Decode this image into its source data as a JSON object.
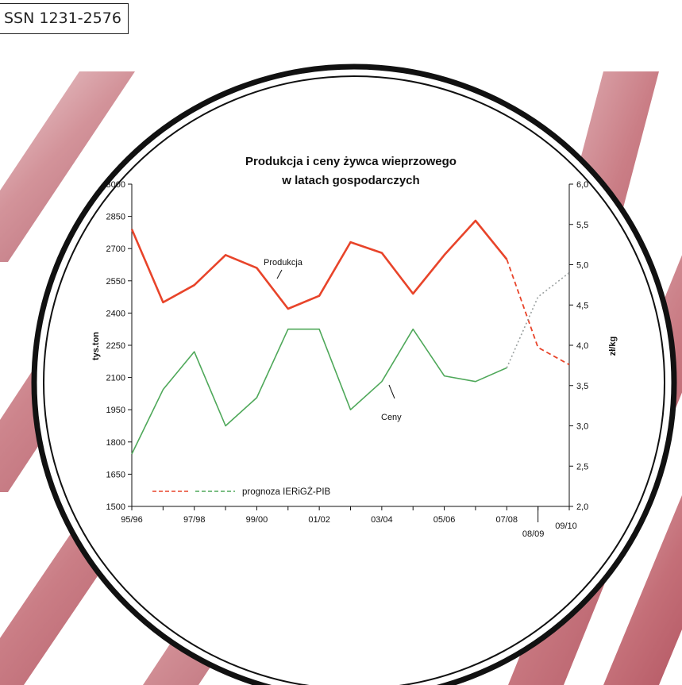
{
  "cover": {
    "issn": "SSN 1231-2576",
    "stripe_colors": [
      "#c46f78",
      "#9c3444"
    ]
  },
  "chart_data": {
    "type": "line",
    "title": "Produkcja i ceny żywca wieprzowego",
    "subtitle": "w latach gospodarczych",
    "ylabel": "tys.ton",
    "y2label": "zł/kg",
    "ylim": [
      1500,
      3000
    ],
    "y2lim": [
      2.0,
      6.0
    ],
    "y_ticks": [
      "3000",
      "2850",
      "2700",
      "2550",
      "2400",
      "2250",
      "2100",
      "1950",
      "1800",
      "1650",
      "1500"
    ],
    "y2_ticks": [
      "6,0",
      "5,5",
      "5,0",
      "4,5",
      "4,0",
      "3,5",
      "3,0",
      "2,5",
      "2,0"
    ],
    "x_tick_labels": [
      "95/96",
      "97/98",
      "99/00",
      "01/02",
      "03/04",
      "05/06",
      "07/08",
      "08/09",
      "09/10"
    ],
    "series": [
      {
        "name": "Produkcja",
        "axis": "left",
        "color": "#e8442a",
        "x": [
          "95/96",
          "96/97",
          "97/98",
          "98/99",
          "99/00",
          "00/01",
          "01/02",
          "02/03",
          "03/04",
          "04/05",
          "05/06",
          "06/07",
          "07/08"
        ],
        "values": [
          2790,
          2450,
          2530,
          2670,
          2610,
          2420,
          2480,
          2730,
          2680,
          2490,
          2670,
          2830,
          2650
        ]
      },
      {
        "name": "Ceny",
        "axis": "right",
        "color": "#4fa85a",
        "x": [
          "95/96",
          "96/97",
          "97/98",
          "98/99",
          "99/00",
          "00/01",
          "01/02",
          "02/03",
          "03/04",
          "04/05",
          "05/06",
          "06/07",
          "07/08"
        ],
        "values": [
          2.65,
          3.45,
          3.92,
          3.0,
          3.35,
          4.2,
          4.2,
          3.2,
          3.55,
          4.2,
          3.62,
          3.55,
          3.72
        ]
      }
    ],
    "forecast": [
      {
        "series": "Produkcja",
        "axis": "left",
        "color": "#e8442a",
        "x": [
          "07/08",
          "08/09",
          "09/10"
        ],
        "values": [
          2650,
          2240,
          2160
        ]
      },
      {
        "series": "Ceny",
        "axis": "right",
        "color": "#9aa0a0",
        "x": [
          "07/08",
          "08/09",
          "09/10"
        ],
        "values": [
          3.72,
          4.6,
          4.9
        ]
      }
    ],
    "legend": {
      "label": "prognoza IERiGŻ-PIB",
      "colors": [
        "#e8442a",
        "#4fa85a"
      ],
      "position": "bottom-left"
    },
    "annotations": [
      "Produkcja",
      "Ceny"
    ],
    "grid": false
  }
}
